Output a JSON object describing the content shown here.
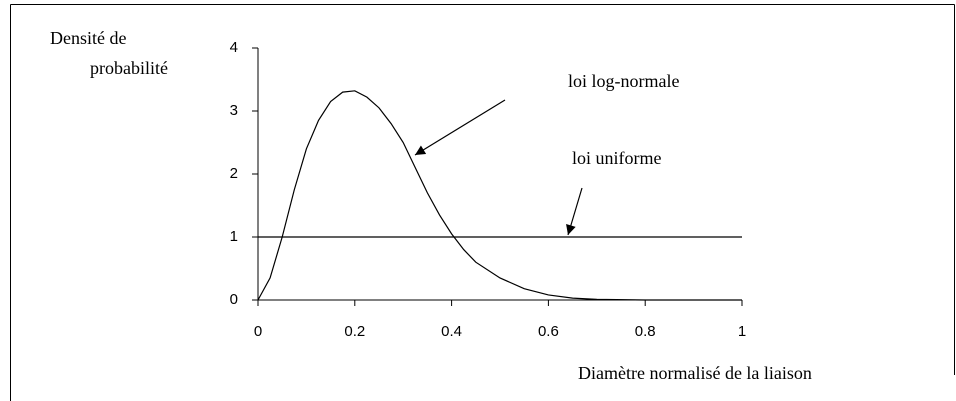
{
  "chart_data": {
    "type": "line",
    "ylabel": [
      "Densité de",
      "probabilité"
    ],
    "xlabel": "Diamètre normalisé de la liaison",
    "xlim": [
      0,
      1
    ],
    "xticks": [
      0,
      0.2,
      0.4,
      0.6,
      0.8,
      1
    ],
    "ylim": [
      0,
      4
    ],
    "yticks": [
      0,
      1,
      2,
      3,
      4
    ],
    "series": [
      {
        "name": "loi log-normale",
        "color": "#000000",
        "x": [
          0,
          0.025,
          0.05,
          0.075,
          0.1,
          0.125,
          0.15,
          0.175,
          0.2,
          0.225,
          0.25,
          0.275,
          0.3,
          0.325,
          0.35,
          0.375,
          0.4,
          0.425,
          0.45,
          0.5,
          0.55,
          0.6,
          0.65,
          0.7,
          0.8,
          0.9,
          1
        ],
        "values": [
          0,
          0.35,
          1.0,
          1.75,
          2.4,
          2.85,
          3.15,
          3.3,
          3.32,
          3.22,
          3.05,
          2.8,
          2.5,
          2.1,
          1.7,
          1.35,
          1.05,
          0.8,
          0.6,
          0.35,
          0.18,
          0.08,
          0.03,
          0.01,
          0,
          0,
          0
        ]
      },
      {
        "name": "loi uniforme",
        "color": "#000000",
        "x": [
          0,
          1
        ],
        "values": [
          1,
          1
        ]
      }
    ]
  }
}
